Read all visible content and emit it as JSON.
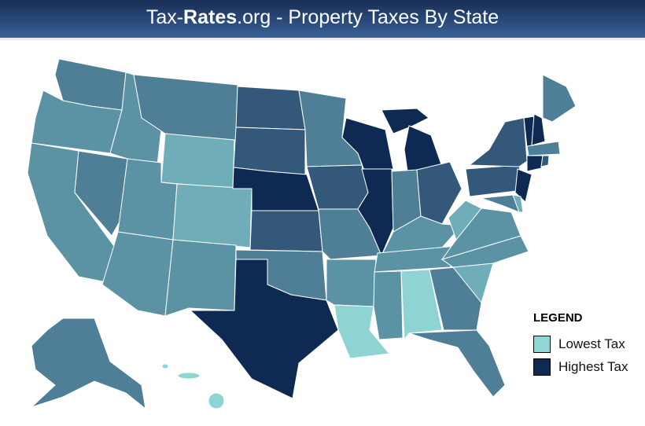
{
  "header": {
    "title_prefix": "Tax-",
    "title_bold": "Rates",
    "title_suffix": ".org - Property Taxes By State"
  },
  "legend": {
    "title": "LEGEND",
    "items": [
      {
        "label": "Lowest Tax",
        "color": "#8fd6d6"
      },
      {
        "label": "Highest Tax",
        "color": "#0f2a52"
      }
    ]
  },
  "palette": [
    "#8fd3d3",
    "#6fadb8",
    "#5b93a5",
    "#4e7f96",
    "#33587a",
    "#0f2a52"
  ],
  "state_levels": {
    "WA": 3,
    "OR": 2,
    "CA": 2,
    "NV": 3,
    "ID": 2,
    "MT": 3,
    "WY": 1,
    "UT": 2,
    "AZ": 2,
    "CO": 1,
    "NM": 2,
    "ND": 4,
    "SD": 4,
    "NE": 5,
    "KS": 4,
    "OK": 3,
    "TX": 5,
    "MN": 3,
    "IA": 4,
    "MO": 3,
    "AR": 2,
    "LA": 0,
    "WI": 5,
    "IL": 5,
    "MI": 5,
    "IN": 3,
    "OH": 4,
    "KY": 2,
    "TN": 2,
    "MS": 2,
    "AL": 0,
    "GA": 3,
    "FL": 3,
    "SC": 1,
    "NC": 2,
    "VA": 2,
    "WV": 1,
    "PA": 4,
    "NY": 4,
    "NJ": 5,
    "MD": 3,
    "DE": 1,
    "VT": 5,
    "NH": 5,
    "ME": 3,
    "MA": 3,
    "CT": 5,
    "RI": 4,
    "AK": 3,
    "HI": 0
  }
}
